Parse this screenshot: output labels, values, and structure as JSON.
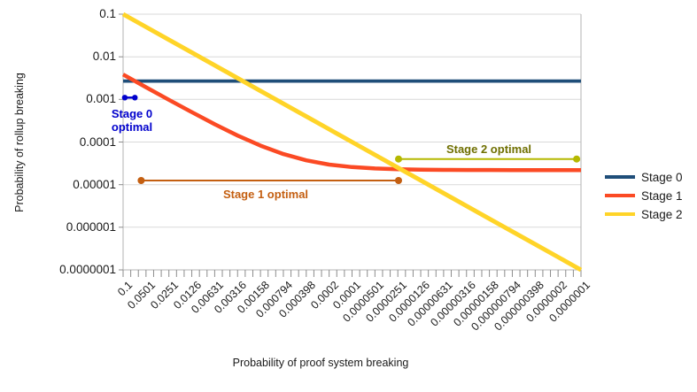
{
  "chart_data": {
    "type": "line",
    "title": "",
    "xlabel": "Probability of proof system breaking",
    "ylabel": "Probability of rollup breaking",
    "x_scale": "log",
    "y_scale": "log",
    "x_range": [
      0.1,
      1e-07
    ],
    "y_range": [
      0.1,
      1e-07
    ],
    "grid": "horizontal",
    "legend_position": "right",
    "x": [
      0.1,
      0.0501,
      0.0251,
      0.0126,
      0.00631,
      0.00316,
      0.00158,
      0.000794,
      0.000398,
      0.0002,
      0.0001,
      5.01e-05,
      2.51e-05,
      1.26e-05,
      6.31e-06,
      3.16e-06,
      1.58e-06,
      7.94e-07,
      3.98e-07,
      2e-07,
      1e-07
    ],
    "x_tick_labels": [
      "0.1",
      "0.0501",
      "0.0251",
      "0.0126",
      "0.00631",
      "0.00316",
      "0.00158",
      "0.000794",
      "0.000398",
      "0.0002",
      "0.0001",
      "0.0000501",
      "0.0000251",
      "0.0000126",
      "0.00000631",
      "0.00000316",
      "0.00000158",
      "0.000000794",
      "0.000000398",
      "0.0000002",
      "0.0000001"
    ],
    "y_tick_labels": [
      "0.1",
      "0.01",
      "0.001",
      "0.0001",
      "0.00001",
      "0.000001",
      "0.0000001"
    ],
    "x_minor_ticks_per_label_interval": 3,
    "series": [
      {
        "name": "Stage 0",
        "color": "#1f4e79",
        "values": [
          0.0027,
          0.0027,
          0.0027,
          0.0027,
          0.0027,
          0.0027,
          0.0027,
          0.0027,
          0.0027,
          0.0027,
          0.0027,
          0.0027,
          0.0027,
          0.0027,
          0.0027,
          0.0027,
          0.0027,
          0.0027,
          0.0027,
          0.0027,
          0.0027
        ]
      },
      {
        "name": "Stage 1",
        "color": "#fb4a24",
        "values": [
          0.00383,
          0.00193,
          0.000978,
          0.000502,
          0.000262,
          0.000142,
          8.22e-05,
          5.23e-05,
          3.72e-05,
          2.96e-05,
          2.58e-05,
          2.39e-05,
          2.3e-05,
          2.25e-05,
          2.22e-05,
          2.21e-05,
          2.21e-05,
          2.2e-05,
          2.2e-05,
          2.2e-05,
          2.2e-05
        ]
      },
      {
        "name": "Stage 2",
        "color": "#ffd428",
        "values": [
          0.1,
          0.0501,
          0.0251,
          0.0126,
          0.00631,
          0.00316,
          0.00158,
          0.000794,
          0.000398,
          0.0002,
          0.0001,
          5.01e-05,
          2.51e-05,
          1.26e-05,
          6.31e-06,
          3.16e-06,
          1.58e-06,
          7.94e-07,
          3.98e-07,
          2e-07,
          1e-07
        ]
      }
    ],
    "annotations": [
      {
        "id": "stage-0-optimal",
        "label_lines": [
          "Stage 0",
          "optimal"
        ],
        "color": "#0000cc",
        "line_color": "#0000cc",
        "x_start": 0.095,
        "x_end": 0.07,
        "y": 0.0011,
        "label_cx": 0.076,
        "label_cy": 0.00033
      },
      {
        "id": "stage-1-optimal",
        "label_lines": [
          "Stage 1 optimal"
        ],
        "color": "#c45f11",
        "line_color": "#c45f11",
        "x_start": 0.058,
        "x_end": 2.46e-05,
        "y": 1.25e-05,
        "label_cx": 0.00135,
        "label_cy": 6.1e-06
      },
      {
        "id": "stage-2-optimal",
        "label_lines": [
          "Stage 2 optimal"
        ],
        "color": "#6f6f00",
        "line_color": "#b5b800",
        "x_start": 2.46e-05,
        "x_end": 1.14e-07,
        "y": 4e-05,
        "label_cx": 1.6e-06,
        "label_cy": 6.7e-05
      }
    ],
    "legend": [
      {
        "label": "Stage 0",
        "color": "#1f4e79"
      },
      {
        "label": "Stage 1",
        "color": "#fb4a24"
      },
      {
        "label": "Stage 2",
        "color": "#ffd428"
      }
    ]
  }
}
